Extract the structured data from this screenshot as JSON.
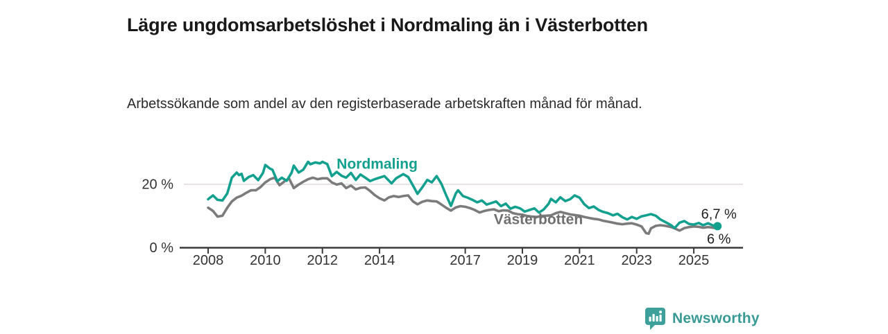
{
  "header": {
    "title": "Lägre ungdomsarbetslöshet i Nordmaling än i Västerbotten",
    "subtitle": "Arbetssökande som andel av den registerbaserade arbetskraften månad för månad."
  },
  "branding": {
    "logo_text": "Newsworthy",
    "logo_color": "#3da09b"
  },
  "chart_data": {
    "type": "line",
    "title": "Lägre ungdomsarbetslöshet i Nordmaling än i Västerbotten",
    "xlabel": "",
    "ylabel": "",
    "xlim": [
      2007.9,
      2026.3
    ],
    "ylim": [
      0,
      30
    ],
    "grid": "horizontal gridline at 20% only",
    "legend_position": "inline series labels",
    "axis_color": "#3a3a3a",
    "gridline_color": "#e0dcdc",
    "tick_label_color": "#333333",
    "y_ticks": [
      {
        "value": 20,
        "label": "20 %"
      },
      {
        "value": 0,
        "label": "0 %"
      }
    ],
    "x_ticks": [
      {
        "year": 2008,
        "label": "2008"
      },
      {
        "year": 2010,
        "label": "2010"
      },
      {
        "year": 2012,
        "label": "2012"
      },
      {
        "year": 2014,
        "label": "2014"
      },
      {
        "year": 2017,
        "label": "2017"
      },
      {
        "year": 2019,
        "label": "2019"
      },
      {
        "year": 2021,
        "label": "2021"
      },
      {
        "year": 2023,
        "label": "2023"
      },
      {
        "year": 2025,
        "label": "2025"
      }
    ],
    "series": [
      {
        "name": "Västerbotten",
        "color": "#7b7b7b",
        "label_color": "#6f6f6f",
        "label_pos": {
          "x": 2018.0,
          "v": 8.8
        },
        "end_label": "6 %",
        "end_label_dy": 16,
        "end_dot": false,
        "points": [
          [
            2008.0,
            12.5
          ],
          [
            2008.17,
            11.5
          ],
          [
            2008.33,
            9.7
          ],
          [
            2008.5,
            10.0
          ],
          [
            2008.67,
            12.5
          ],
          [
            2008.83,
            14.5
          ],
          [
            2009.0,
            15.7
          ],
          [
            2009.17,
            16.3
          ],
          [
            2009.33,
            17.2
          ],
          [
            2009.5,
            18.0
          ],
          [
            2009.67,
            18.0
          ],
          [
            2009.83,
            19.0
          ],
          [
            2010.0,
            20.5
          ],
          [
            2010.17,
            21.5
          ],
          [
            2010.33,
            22.0
          ],
          [
            2010.5,
            19.6
          ],
          [
            2010.67,
            20.8
          ],
          [
            2010.83,
            21.8
          ],
          [
            2011.0,
            18.7
          ],
          [
            2011.17,
            19.8
          ],
          [
            2011.33,
            20.7
          ],
          [
            2011.5,
            21.5
          ],
          [
            2011.67,
            22.0
          ],
          [
            2011.83,
            21.5
          ],
          [
            2012.0,
            21.8
          ],
          [
            2012.17,
            21.8
          ],
          [
            2012.33,
            20.5
          ],
          [
            2012.5,
            19.8
          ],
          [
            2012.67,
            20.2
          ],
          [
            2012.83,
            18.7
          ],
          [
            2013.0,
            19.5
          ],
          [
            2013.17,
            18.3
          ],
          [
            2013.33,
            18.8
          ],
          [
            2013.5,
            18.9
          ],
          [
            2013.67,
            17.8
          ],
          [
            2013.83,
            16.5
          ],
          [
            2014.0,
            15.5
          ],
          [
            2014.17,
            14.8
          ],
          [
            2014.33,
            15.8
          ],
          [
            2014.5,
            16.2
          ],
          [
            2014.67,
            15.9
          ],
          [
            2014.83,
            16.2
          ],
          [
            2015.0,
            16.4
          ],
          [
            2015.17,
            14.5
          ],
          [
            2015.33,
            13.6
          ],
          [
            2015.5,
            14.4
          ],
          [
            2015.67,
            14.8
          ],
          [
            2015.83,
            14.6
          ],
          [
            2016.0,
            14.5
          ],
          [
            2016.17,
            13.5
          ],
          [
            2016.33,
            12.5
          ],
          [
            2016.5,
            11.6
          ],
          [
            2016.67,
            12.6
          ],
          [
            2016.83,
            13.0
          ],
          [
            2017.0,
            12.8
          ],
          [
            2017.17,
            12.4
          ],
          [
            2017.33,
            11.8
          ],
          [
            2017.5,
            11.0
          ],
          [
            2017.67,
            11.5
          ],
          [
            2017.83,
            11.8
          ],
          [
            2018.0,
            12.0
          ],
          [
            2018.17,
            11.4
          ],
          [
            2018.33,
            11.7
          ],
          [
            2018.5,
            11.6
          ],
          [
            2018.67,
            10.8
          ],
          [
            2018.83,
            10.5
          ],
          [
            2019.0,
            10.3
          ],
          [
            2019.17,
            9.9
          ],
          [
            2019.33,
            9.7
          ],
          [
            2019.5,
            9.6
          ],
          [
            2019.67,
            9.9
          ],
          [
            2019.83,
            10.0
          ],
          [
            2020.0,
            10.1
          ],
          [
            2020.17,
            10.8
          ],
          [
            2020.33,
            11.2
          ],
          [
            2020.5,
            10.8
          ],
          [
            2020.67,
            10.4
          ],
          [
            2020.83,
            10.2
          ],
          [
            2021.0,
            10.0
          ],
          [
            2021.17,
            9.6
          ],
          [
            2021.33,
            9.3
          ],
          [
            2021.5,
            9.0
          ],
          [
            2021.67,
            8.8
          ],
          [
            2021.83,
            8.4
          ],
          [
            2022.0,
            8.1
          ],
          [
            2022.17,
            7.8
          ],
          [
            2022.33,
            7.5
          ],
          [
            2022.5,
            7.3
          ],
          [
            2022.67,
            7.5
          ],
          [
            2022.83,
            7.6
          ],
          [
            2023.0,
            7.2
          ],
          [
            2023.17,
            6.6
          ],
          [
            2023.33,
            4.5
          ],
          [
            2023.42,
            4.3
          ],
          [
            2023.5,
            6.0
          ],
          [
            2023.67,
            6.8
          ],
          [
            2023.83,
            7.0
          ],
          [
            2024.0,
            6.8
          ],
          [
            2024.17,
            6.5
          ],
          [
            2024.33,
            6.0
          ],
          [
            2024.5,
            5.3
          ],
          [
            2024.67,
            6.1
          ],
          [
            2024.83,
            6.4
          ],
          [
            2025.0,
            6.6
          ],
          [
            2025.17,
            6.5
          ],
          [
            2025.33,
            6.2
          ],
          [
            2025.5,
            6.4
          ],
          [
            2025.67,
            6.2
          ],
          [
            2025.83,
            6.0
          ]
        ]
      },
      {
        "name": "Nordmaling",
        "color": "#14a08f",
        "label_color": "#14a08f",
        "label_pos": {
          "x": 2012.5,
          "v": 26.3
        },
        "end_label": "6,7 %",
        "end_label_dy": -17,
        "end_dot": true,
        "points": [
          [
            2008.0,
            15.2
          ],
          [
            2008.17,
            16.4
          ],
          [
            2008.33,
            15.0
          ],
          [
            2008.5,
            14.8
          ],
          [
            2008.67,
            17.0
          ],
          [
            2008.83,
            22.0
          ],
          [
            2009.0,
            23.6
          ],
          [
            2009.08,
            22.8
          ],
          [
            2009.17,
            23.2
          ],
          [
            2009.25,
            21.0
          ],
          [
            2009.42,
            22.2
          ],
          [
            2009.58,
            22.8
          ],
          [
            2009.75,
            21.2
          ],
          [
            2009.92,
            23.5
          ],
          [
            2010.0,
            26.0
          ],
          [
            2010.17,
            24.8
          ],
          [
            2010.25,
            24.5
          ],
          [
            2010.42,
            20.9
          ],
          [
            2010.58,
            22.0
          ],
          [
            2010.75,
            21.0
          ],
          [
            2010.92,
            23.5
          ],
          [
            2011.0,
            25.8
          ],
          [
            2011.17,
            23.6
          ],
          [
            2011.33,
            24.5
          ],
          [
            2011.5,
            27.0
          ],
          [
            2011.58,
            26.2
          ],
          [
            2011.75,
            26.8
          ],
          [
            2011.92,
            26.5
          ],
          [
            2012.0,
            27.0
          ],
          [
            2012.17,
            26.3
          ],
          [
            2012.33,
            22.5
          ],
          [
            2012.5,
            23.8
          ],
          [
            2012.67,
            22.6
          ],
          [
            2012.83,
            22.0
          ],
          [
            2013.0,
            23.5
          ],
          [
            2013.17,
            21.3
          ],
          [
            2013.33,
            23.0
          ],
          [
            2013.5,
            22.0
          ],
          [
            2013.67,
            20.9
          ],
          [
            2013.83,
            21.5
          ],
          [
            2014.0,
            22.0
          ],
          [
            2014.17,
            22.5
          ],
          [
            2014.42,
            20.2
          ],
          [
            2014.58,
            21.8
          ],
          [
            2014.83,
            23.1
          ],
          [
            2015.0,
            22.2
          ],
          [
            2015.17,
            19.5
          ],
          [
            2015.33,
            16.9
          ],
          [
            2015.5,
            19.0
          ],
          [
            2015.67,
            21.3
          ],
          [
            2015.83,
            20.5
          ],
          [
            2016.0,
            22.5
          ],
          [
            2016.17,
            20.0
          ],
          [
            2016.33,
            16.5
          ],
          [
            2016.5,
            13.1
          ],
          [
            2016.67,
            17.0
          ],
          [
            2016.75,
            18.0
          ],
          [
            2016.92,
            16.2
          ],
          [
            2017.08,
            15.7
          ],
          [
            2017.25,
            15.0
          ],
          [
            2017.42,
            14.2
          ],
          [
            2017.58,
            14.8
          ],
          [
            2017.75,
            13.5
          ],
          [
            2017.92,
            14.0
          ],
          [
            2018.08,
            14.5
          ],
          [
            2018.25,
            13.0
          ],
          [
            2018.42,
            13.8
          ],
          [
            2018.58,
            12.2
          ],
          [
            2018.75,
            12.8
          ],
          [
            2018.92,
            12.3
          ],
          [
            2019.08,
            11.3
          ],
          [
            2019.25,
            11.8
          ],
          [
            2019.42,
            12.3
          ],
          [
            2019.58,
            11.0
          ],
          [
            2019.75,
            12.0
          ],
          [
            2019.92,
            13.8
          ],
          [
            2020.0,
            15.3
          ],
          [
            2020.17,
            14.2
          ],
          [
            2020.33,
            15.8
          ],
          [
            2020.5,
            14.6
          ],
          [
            2020.67,
            15.2
          ],
          [
            2020.83,
            16.4
          ],
          [
            2021.0,
            15.7
          ],
          [
            2021.17,
            13.6
          ],
          [
            2021.33,
            12.4
          ],
          [
            2021.5,
            12.9
          ],
          [
            2021.67,
            11.8
          ],
          [
            2021.83,
            11.2
          ],
          [
            2022.0,
            10.8
          ],
          [
            2022.17,
            10.1
          ],
          [
            2022.33,
            10.6
          ],
          [
            2022.5,
            9.5
          ],
          [
            2022.67,
            8.8
          ],
          [
            2022.83,
            9.6
          ],
          [
            2023.0,
            9.0
          ],
          [
            2023.17,
            9.8
          ],
          [
            2023.33,
            10.1
          ],
          [
            2023.5,
            10.5
          ],
          [
            2023.67,
            10.0
          ],
          [
            2023.83,
            8.8
          ],
          [
            2024.0,
            8.0
          ],
          [
            2024.17,
            7.2
          ],
          [
            2024.33,
            6.1
          ],
          [
            2024.5,
            7.8
          ],
          [
            2024.67,
            8.3
          ],
          [
            2024.83,
            7.4
          ],
          [
            2025.0,
            7.2
          ],
          [
            2025.17,
            7.7
          ],
          [
            2025.33,
            7.0
          ],
          [
            2025.5,
            7.6
          ],
          [
            2025.67,
            6.9
          ],
          [
            2025.83,
            6.7
          ]
        ]
      }
    ]
  }
}
